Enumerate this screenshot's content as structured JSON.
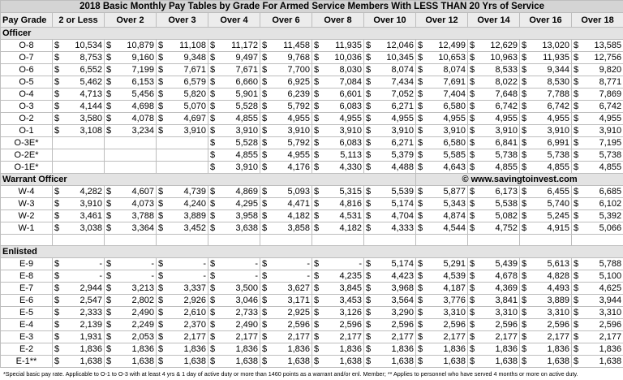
{
  "title": "2018 Basic Monthly Pay Tables by Grade For Armed Service Members With LESS THAN 20 Yrs of Service",
  "currency_symbol": "$",
  "columns": [
    "Pay Grade",
    "2 or Less",
    "Over 2",
    "Over 3",
    "Over 4",
    "Over 6",
    "Over 8",
    "Over 10",
    "Over 12",
    "Over 14",
    "Over 16",
    "Over 18"
  ],
  "watermark": "© www.savingtoinvest.com",
  "sections": [
    {
      "name": "Officer",
      "rows": [
        {
          "grade": "O-8",
          "values": [
            "10,534",
            "10,879",
            "11,108",
            "11,172",
            "11,458",
            "11,935",
            "12,046",
            "12,499",
            "12,629",
            "13,020",
            "13,585"
          ]
        },
        {
          "grade": "O-7",
          "values": [
            "8,753",
            "9,160",
            "9,348",
            "9,497",
            "9,768",
            "10,036",
            "10,345",
            "10,653",
            "10,963",
            "11,935",
            "12,756"
          ]
        },
        {
          "grade": "O-6",
          "values": [
            "6,552",
            "7,199",
            "7,671",
            "7,671",
            "7,700",
            "8,030",
            "8,074",
            "8,074",
            "8,533",
            "9,344",
            "9,820"
          ]
        },
        {
          "grade": "O-5",
          "values": [
            "5,462",
            "6,153",
            "6,579",
            "6,660",
            "6,925",
            "7,084",
            "7,434",
            "7,691",
            "8,022",
            "8,530",
            "8,771"
          ]
        },
        {
          "grade": "O-4",
          "values": [
            "4,713",
            "5,456",
            "5,820",
            "5,901",
            "6,239",
            "6,601",
            "7,052",
            "7,404",
            "7,648",
            "7,788",
            "7,869"
          ]
        },
        {
          "grade": "O-3",
          "values": [
            "4,144",
            "4,698",
            "5,070",
            "5,528",
            "5,792",
            "6,083",
            "6,271",
            "6,580",
            "6,742",
            "6,742",
            "6,742"
          ]
        },
        {
          "grade": "O-2",
          "values": [
            "3,580",
            "4,078",
            "4,697",
            "4,855",
            "4,955",
            "4,955",
            "4,955",
            "4,955",
            "4,955",
            "4,955",
            "4,955"
          ]
        },
        {
          "grade": "O-1",
          "values": [
            "3,108",
            "3,234",
            "3,910",
            "3,910",
            "3,910",
            "3,910",
            "3,910",
            "3,910",
            "3,910",
            "3,910",
            "3,910"
          ]
        },
        {
          "grade": "O-3E*",
          "values": [
            null,
            null,
            null,
            "5,528",
            "5,792",
            "6,083",
            "6,271",
            "6,580",
            "6,841",
            "6,991",
            "7,195"
          ]
        },
        {
          "grade": "O-2E*",
          "values": [
            null,
            null,
            null,
            "4,855",
            "4,955",
            "5,113",
            "5,379",
            "5,585",
            "5,738",
            "5,738",
            "5,738"
          ]
        },
        {
          "grade": "O-1E*",
          "values": [
            null,
            null,
            null,
            "3,910",
            "4,176",
            "4,330",
            "4,488",
            "4,643",
            "4,855",
            "4,855",
            "4,855"
          ]
        }
      ]
    },
    {
      "name": "Warrant Officer",
      "rows": [
        {
          "grade": "W-4",
          "values": [
            "4,282",
            "4,607",
            "4,739",
            "4,869",
            "5,093",
            "5,315",
            "5,539",
            "5,877",
            "6,173",
            "6,455",
            "6,685"
          ]
        },
        {
          "grade": "W-3",
          "values": [
            "3,910",
            "4,073",
            "4,240",
            "4,295",
            "4,471",
            "4,816",
            "5,174",
            "5,343",
            "5,538",
            "5,740",
            "6,102"
          ]
        },
        {
          "grade": "W-2",
          "values": [
            "3,461",
            "3,788",
            "3,889",
            "3,958",
            "4,182",
            "4,531",
            "4,704",
            "4,874",
            "5,082",
            "5,245",
            "5,392"
          ]
        },
        {
          "grade": "W-1",
          "values": [
            "3,038",
            "3,364",
            "3,452",
            "3,638",
            "3,858",
            "4,182",
            "4,333",
            "4,544",
            "4,752",
            "4,915",
            "5,066"
          ]
        }
      ]
    },
    {
      "name": "Enlisted",
      "rows": [
        {
          "grade": "E-9",
          "values": [
            "-",
            "-",
            "-",
            "-",
            "-",
            "-",
            "5,174",
            "5,291",
            "5,439",
            "5,613",
            "5,788"
          ]
        },
        {
          "grade": "E-8",
          "values": [
            "-",
            "-",
            "-",
            "-",
            "-",
            "4,235",
            "4,423",
            "4,539",
            "4,678",
            "4,828",
            "5,100"
          ]
        },
        {
          "grade": "E-7",
          "values": [
            "2,944",
            "3,213",
            "3,337",
            "3,500",
            "3,627",
            "3,845",
            "3,968",
            "4,187",
            "4,369",
            "4,493",
            "4,625"
          ]
        },
        {
          "grade": "E-6",
          "values": [
            "2,547",
            "2,802",
            "2,926",
            "3,046",
            "3,171",
            "3,453",
            "3,564",
            "3,776",
            "3,841",
            "3,889",
            "3,944"
          ]
        },
        {
          "grade": "E-5",
          "values": [
            "2,333",
            "2,490",
            "2,610",
            "2,733",
            "2,925",
            "3,126",
            "3,290",
            "3,310",
            "3,310",
            "3,310",
            "3,310"
          ]
        },
        {
          "grade": "E-4",
          "values": [
            "2,139",
            "2,249",
            "2,370",
            "2,490",
            "2,596",
            "2,596",
            "2,596",
            "2,596",
            "2,596",
            "2,596",
            "2,596"
          ]
        },
        {
          "grade": "E-3",
          "values": [
            "1,931",
            "2,053",
            "2,177",
            "2,177",
            "2,177",
            "2,177",
            "2,177",
            "2,177",
            "2,177",
            "2,177",
            "2,177"
          ]
        },
        {
          "grade": "E-2",
          "values": [
            "1,836",
            "1,836",
            "1,836",
            "1,836",
            "1,836",
            "1,836",
            "1,836",
            "1,836",
            "1,836",
            "1,836",
            "1,836"
          ]
        },
        {
          "grade": "E-1**",
          "values": [
            "1,638",
            "1,638",
            "1,638",
            "1,638",
            "1,638",
            "1,638",
            "1,638",
            "1,638",
            "1,638",
            "1,638",
            "1,638"
          ]
        }
      ]
    }
  ],
  "footnote": "*Special basic pay rate. Applicable to O-1 to O-3 with at least 4 yrs & 1 day of active duty or more than 1460 points as a warrant and/or enl. Member; ** Applies to personnel who have served 4 months or more on active duty."
}
